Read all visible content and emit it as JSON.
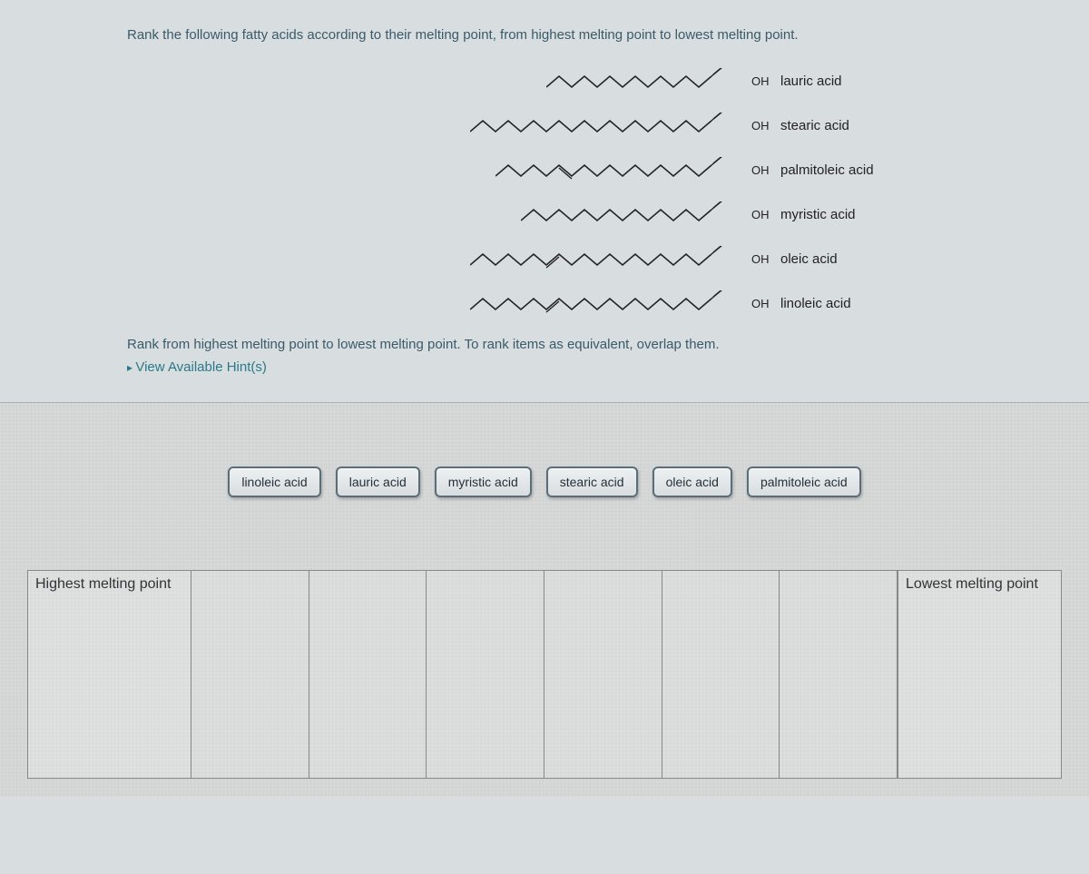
{
  "question": {
    "prompt": "Rank the following fatty acids according to their melting point, from highest melting point to lowest melting point.",
    "instruction": "Rank from highest melting point to lowest melting point. To rank items as equivalent, overlap them.",
    "hints_label": "View Available Hint(s)"
  },
  "structures": [
    {
      "oh": "OH",
      "name": "lauric acid",
      "chain_len": 180,
      "double_bonds": []
    },
    {
      "oh": "OH",
      "name": "stearic acid",
      "chain_len": 270,
      "double_bonds": []
    },
    {
      "oh": "OH",
      "name": "palmitoleic acid",
      "chain_len": 240,
      "double_bonds": [
        1
      ]
    },
    {
      "oh": "OH",
      "name": "myristic acid",
      "chain_len": 210,
      "double_bonds": []
    },
    {
      "oh": "OH",
      "name": "oleic acid",
      "chain_len": 270,
      "double_bonds": [
        1
      ]
    },
    {
      "oh": "OH",
      "name": "linoleic acid",
      "chain_len": 270,
      "double_bonds": [
        2
      ]
    }
  ],
  "chips": [
    {
      "label": "linoleic acid"
    },
    {
      "label": "lauric acid"
    },
    {
      "label": "myristic acid"
    },
    {
      "label": "stearic acid"
    },
    {
      "label": "oleic acid"
    },
    {
      "label": "palmitoleic acid"
    }
  ],
  "drop_zone": {
    "left_label": "Highest melting point",
    "right_label": "Lowest melting point",
    "slot_count": 6
  },
  "colors": {
    "page_bg": "#d8dde0",
    "text_teal": "#3a5a6a",
    "link_teal": "#2a7a8a",
    "chip_border": "#5a6e7a",
    "zone_border": "#888888"
  }
}
